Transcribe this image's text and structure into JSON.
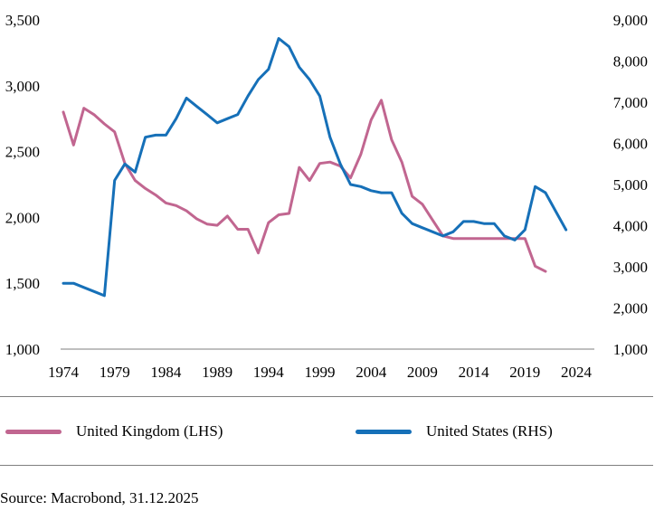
{
  "chart_data": {
    "type": "line",
    "title": "",
    "xlabel": "",
    "ylabel": "",
    "x_ticks": [
      "1974",
      "1979",
      "1984",
      "1989",
      "1994",
      "1999",
      "2004",
      "2009",
      "2014",
      "2019",
      "2024"
    ],
    "y_left": {
      "range": [
        1000,
        3500
      ],
      "ticks": [
        "1,000",
        "1,500",
        "2,000",
        "2,500",
        "3,000",
        "3,500"
      ]
    },
    "y_right": {
      "range": [
        1000,
        9000
      ],
      "ticks": [
        "1,000",
        "2,000",
        "3,000",
        "4,000",
        "5,000",
        "6,000",
        "7,000",
        "8,000",
        "9,000"
      ]
    },
    "grid": false,
    "legend_position": "bottom",
    "series": [
      {
        "name": "United Kingdom (LHS)",
        "axis": "left",
        "color": "#c16690",
        "x": [
          1974,
          1975,
          1976,
          1977,
          1978,
          1979,
          1980,
          1981,
          1982,
          1983,
          1984,
          1985,
          1986,
          1987,
          1988,
          1989,
          1990,
          1991,
          1992,
          1993,
          1994,
          1995,
          1996,
          1997,
          1998,
          1999,
          2000,
          2001,
          2002,
          2003,
          2004,
          2005,
          2006,
          2007,
          2008,
          2009,
          2010,
          2011,
          2012,
          2013,
          2014,
          2015,
          2016,
          2017,
          2018,
          2019,
          2020,
          2021
        ],
        "values": [
          2800,
          2550,
          2830,
          2780,
          2710,
          2650,
          2410,
          2280,
          2220,
          2170,
          2110,
          2090,
          2050,
          1990,
          1950,
          1940,
          2010,
          1910,
          1910,
          1730,
          1960,
          2020,
          2030,
          2380,
          2280,
          2410,
          2420,
          2390,
          2300,
          2480,
          2740,
          2890,
          2590,
          2420,
          2160,
          2100,
          1980,
          1860,
          1840,
          1840,
          1840,
          1840,
          1840,
          1840,
          1840,
          1840,
          1630,
          1590
        ]
      },
      {
        "name": "United States (RHS)",
        "axis": "right",
        "color": "#1670b8",
        "x": [
          1974,
          1975,
          1976,
          1977,
          1978,
          1979,
          1980,
          1981,
          1982,
          1983,
          1984,
          1985,
          1986,
          1987,
          1988,
          1989,
          1990,
          1991,
          1992,
          1993,
          1994,
          1995,
          1996,
          1997,
          1998,
          1999,
          2000,
          2001,
          2002,
          2003,
          2004,
          2005,
          2006,
          2007,
          2008,
          2009,
          2010,
          2011,
          2012,
          2013,
          2014,
          2015,
          2016,
          2017,
          2018,
          2019,
          2020,
          2021,
          2022,
          2023
        ],
        "values": [
          2600,
          2600,
          2500,
          2400,
          2300,
          5100,
          5500,
          5300,
          6150,
          6200,
          6200,
          6600,
          7100,
          6900,
          6700,
          6500,
          6600,
          6700,
          7150,
          7550,
          7800,
          8550,
          8350,
          7850,
          7550,
          7150,
          6150,
          5500,
          5000,
          4950,
          4850,
          4800,
          4800,
          4300,
          4050,
          3950,
          3850,
          3750,
          3850,
          4100,
          4100,
          4050,
          4050,
          3750,
          3650,
          3900,
          4950,
          4800,
          4350,
          3900
        ]
      }
    ]
  },
  "source_text": "Source: Macrobond, 31.12.2025"
}
